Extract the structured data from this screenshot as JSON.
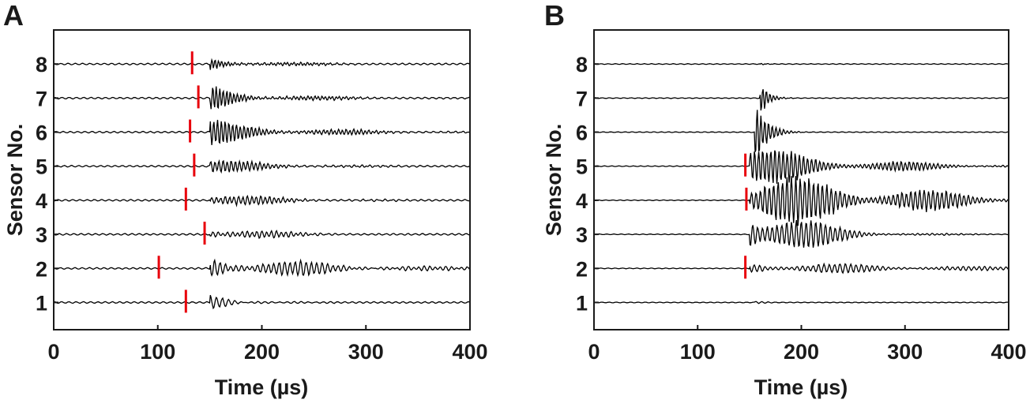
{
  "chart_data": [
    {
      "type": "line",
      "panel_label": "A",
      "xlabel": "Time (µs)",
      "ylabel": "Sensor No.",
      "xlim": [
        0,
        400
      ],
      "ylim": [
        0.2,
        9
      ],
      "xticks": [
        "0",
        "100",
        "200",
        "300",
        "400"
      ],
      "yticks": [
        "1",
        "2",
        "3",
        "4",
        "5",
        "6",
        "7",
        "8"
      ],
      "grid": false,
      "legend": "none",
      "trace_color": "#000000",
      "marker_color": "#e8000b",
      "series": [
        {
          "sensor": 1,
          "arrival_time": 127
        },
        {
          "sensor": 2,
          "arrival_time": 101
        },
        {
          "sensor": 3,
          "arrival_time": 145
        },
        {
          "sensor": 4,
          "arrival_time": 127
        },
        {
          "sensor": 5,
          "arrival_time": 135
        },
        {
          "sensor": 6,
          "arrival_time": 131
        },
        {
          "sensor": 7,
          "arrival_time": 139
        },
        {
          "sensor": 8,
          "arrival_time": 133
        }
      ]
    },
    {
      "type": "line",
      "panel_label": "B",
      "xlabel": "Time (µs)",
      "ylabel": "Sensor No.",
      "xlim": [
        0,
        400
      ],
      "ylim": [
        0.2,
        9
      ],
      "xticks": [
        "0",
        "100",
        "200",
        "300",
        "400"
      ],
      "yticks": [
        "1",
        "2",
        "3",
        "4",
        "5",
        "6",
        "7",
        "8"
      ],
      "grid": false,
      "legend": "none",
      "trace_color": "#000000",
      "marker_color": "#e8000b",
      "series": [
        {
          "sensor": 2,
          "arrival_time": 146
        },
        {
          "sensor": 4,
          "arrival_time": 147
        },
        {
          "sensor": 5,
          "arrival_time": 146
        }
      ]
    }
  ]
}
